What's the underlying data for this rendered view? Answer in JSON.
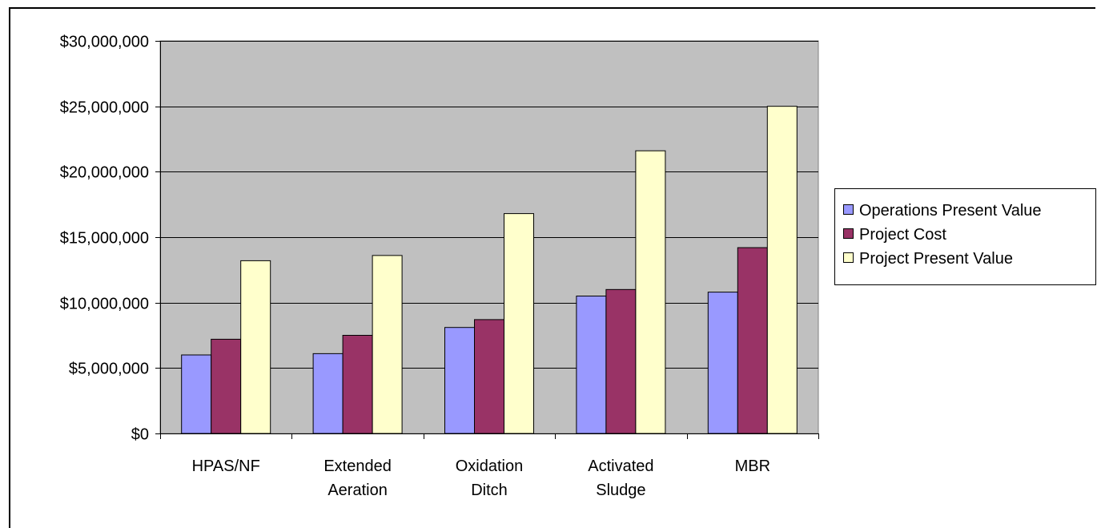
{
  "chart_data": {
    "type": "bar",
    "title": "",
    "xlabel": "",
    "ylabel": "",
    "ylim": [
      0,
      30000000
    ],
    "grid": true,
    "legend_position": "right",
    "y_ticks": [
      {
        "value": 0,
        "label": "$0"
      },
      {
        "value": 5000000,
        "label": "$5,000,000"
      },
      {
        "value": 10000000,
        "label": "$10,000,000"
      },
      {
        "value": 15000000,
        "label": "$15,000,000"
      },
      {
        "value": 20000000,
        "label": "$20,000,000"
      },
      {
        "value": 25000000,
        "label": "$25,000,000"
      },
      {
        "value": 30000000,
        "label": "$30,000,000"
      }
    ],
    "categories": [
      [
        "HPAS/NF"
      ],
      [
        "Extended",
        "Aeration"
      ],
      [
        "Oxidation",
        "Ditch"
      ],
      [
        "Activated",
        "Sludge"
      ],
      [
        "MBR"
      ]
    ],
    "series": [
      {
        "name": "Operations Present Value",
        "color": "#9999ff",
        "values": [
          6000000,
          6100000,
          8100000,
          10500000,
          10800000
        ]
      },
      {
        "name": "Project Cost",
        "color": "#993366",
        "values": [
          7200000,
          7500000,
          8700000,
          11000000,
          14200000
        ]
      },
      {
        "name": "Project Present Value",
        "color": "#ffffcc",
        "values": [
          13200000,
          13600000,
          16800000,
          21600000,
          25000000
        ]
      }
    ],
    "colors": {
      "plot_background": "#c0c0c0",
      "gridline": "#000000"
    }
  }
}
